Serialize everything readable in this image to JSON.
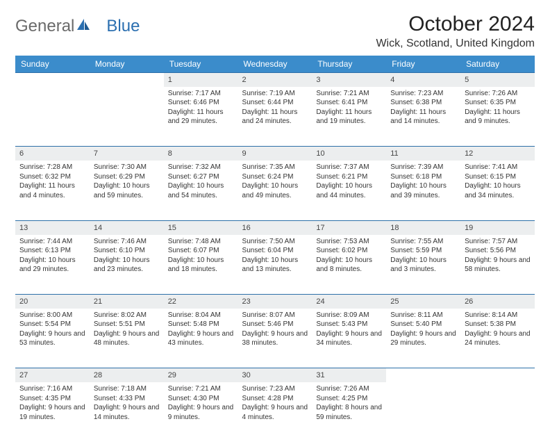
{
  "brand": {
    "general": "General",
    "blue": "Blue"
  },
  "title": "October 2024",
  "location": "Wick, Scotland, United Kingdom",
  "colors": {
    "header_bg": "#3b8ccb",
    "header_text": "#ffffff",
    "daynum_bg": "#eceeef",
    "rule": "#2c6fa8",
    "brand_gray": "#6a6a6a",
    "brand_blue": "#2b6fb0"
  },
  "typography": {
    "title_fontsize": 30,
    "location_fontsize": 16,
    "dow_fontsize": 12,
    "daynum_fontsize": 11,
    "cell_fontsize": 10
  },
  "days_of_week": [
    "Sunday",
    "Monday",
    "Tuesday",
    "Wednesday",
    "Thursday",
    "Friday",
    "Saturday"
  ],
  "weeks": [
    [
      null,
      null,
      {
        "n": "1",
        "sunrise": "7:17 AM",
        "sunset": "6:46 PM",
        "daylight": "11 hours and 29 minutes."
      },
      {
        "n": "2",
        "sunrise": "7:19 AM",
        "sunset": "6:44 PM",
        "daylight": "11 hours and 24 minutes."
      },
      {
        "n": "3",
        "sunrise": "7:21 AM",
        "sunset": "6:41 PM",
        "daylight": "11 hours and 19 minutes."
      },
      {
        "n": "4",
        "sunrise": "7:23 AM",
        "sunset": "6:38 PM",
        "daylight": "11 hours and 14 minutes."
      },
      {
        "n": "5",
        "sunrise": "7:26 AM",
        "sunset": "6:35 PM",
        "daylight": "11 hours and 9 minutes."
      }
    ],
    [
      {
        "n": "6",
        "sunrise": "7:28 AM",
        "sunset": "6:32 PM",
        "daylight": "11 hours and 4 minutes."
      },
      {
        "n": "7",
        "sunrise": "7:30 AM",
        "sunset": "6:29 PM",
        "daylight": "10 hours and 59 minutes."
      },
      {
        "n": "8",
        "sunrise": "7:32 AM",
        "sunset": "6:27 PM",
        "daylight": "10 hours and 54 minutes."
      },
      {
        "n": "9",
        "sunrise": "7:35 AM",
        "sunset": "6:24 PM",
        "daylight": "10 hours and 49 minutes."
      },
      {
        "n": "10",
        "sunrise": "7:37 AM",
        "sunset": "6:21 PM",
        "daylight": "10 hours and 44 minutes."
      },
      {
        "n": "11",
        "sunrise": "7:39 AM",
        "sunset": "6:18 PM",
        "daylight": "10 hours and 39 minutes."
      },
      {
        "n": "12",
        "sunrise": "7:41 AM",
        "sunset": "6:15 PM",
        "daylight": "10 hours and 34 minutes."
      }
    ],
    [
      {
        "n": "13",
        "sunrise": "7:44 AM",
        "sunset": "6:13 PM",
        "daylight": "10 hours and 29 minutes."
      },
      {
        "n": "14",
        "sunrise": "7:46 AM",
        "sunset": "6:10 PM",
        "daylight": "10 hours and 23 minutes."
      },
      {
        "n": "15",
        "sunrise": "7:48 AM",
        "sunset": "6:07 PM",
        "daylight": "10 hours and 18 minutes."
      },
      {
        "n": "16",
        "sunrise": "7:50 AM",
        "sunset": "6:04 PM",
        "daylight": "10 hours and 13 minutes."
      },
      {
        "n": "17",
        "sunrise": "7:53 AM",
        "sunset": "6:02 PM",
        "daylight": "10 hours and 8 minutes."
      },
      {
        "n": "18",
        "sunrise": "7:55 AM",
        "sunset": "5:59 PM",
        "daylight": "10 hours and 3 minutes."
      },
      {
        "n": "19",
        "sunrise": "7:57 AM",
        "sunset": "5:56 PM",
        "daylight": "9 hours and 58 minutes."
      }
    ],
    [
      {
        "n": "20",
        "sunrise": "8:00 AM",
        "sunset": "5:54 PM",
        "daylight": "9 hours and 53 minutes."
      },
      {
        "n": "21",
        "sunrise": "8:02 AM",
        "sunset": "5:51 PM",
        "daylight": "9 hours and 48 minutes."
      },
      {
        "n": "22",
        "sunrise": "8:04 AM",
        "sunset": "5:48 PM",
        "daylight": "9 hours and 43 minutes."
      },
      {
        "n": "23",
        "sunrise": "8:07 AM",
        "sunset": "5:46 PM",
        "daylight": "9 hours and 38 minutes."
      },
      {
        "n": "24",
        "sunrise": "8:09 AM",
        "sunset": "5:43 PM",
        "daylight": "9 hours and 34 minutes."
      },
      {
        "n": "25",
        "sunrise": "8:11 AM",
        "sunset": "5:40 PM",
        "daylight": "9 hours and 29 minutes."
      },
      {
        "n": "26",
        "sunrise": "8:14 AM",
        "sunset": "5:38 PM",
        "daylight": "9 hours and 24 minutes."
      }
    ],
    [
      {
        "n": "27",
        "sunrise": "7:16 AM",
        "sunset": "4:35 PM",
        "daylight": "9 hours and 19 minutes."
      },
      {
        "n": "28",
        "sunrise": "7:18 AM",
        "sunset": "4:33 PM",
        "daylight": "9 hours and 14 minutes."
      },
      {
        "n": "29",
        "sunrise": "7:21 AM",
        "sunset": "4:30 PM",
        "daylight": "9 hours and 9 minutes."
      },
      {
        "n": "30",
        "sunrise": "7:23 AM",
        "sunset": "4:28 PM",
        "daylight": "9 hours and 4 minutes."
      },
      {
        "n": "31",
        "sunrise": "7:26 AM",
        "sunset": "4:25 PM",
        "daylight": "8 hours and 59 minutes."
      },
      null,
      null
    ]
  ]
}
